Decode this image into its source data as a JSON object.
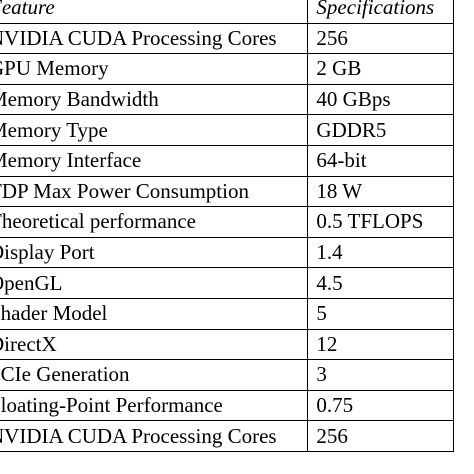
{
  "table": {
    "headers": [
      "Feature",
      "Specifications"
    ],
    "rows": [
      [
        "NVIDIA CUDA Processing Cores",
        "256"
      ],
      [
        "GPU Memory",
        "2 GB"
      ],
      [
        "Memory Bandwidth",
        "40 GBps"
      ],
      [
        "Memory Type",
        "GDDR5"
      ],
      [
        "Memory Interface",
        "64-bit"
      ],
      [
        "TDP Max Power Consumption",
        "18 W"
      ],
      [
        "Theoretical performance",
        "0.5 TFLOPS"
      ],
      [
        "Display Port",
        "1.4"
      ],
      [
        "OpenGL",
        "4.5"
      ],
      [
        "Shader Model",
        "5"
      ],
      [
        "DirectX",
        "12"
      ],
      [
        "PCIe Generation",
        "3"
      ],
      [
        "Floating-Point Performance",
        "0.75"
      ],
      [
        "NVIDIA CUDA Processing Cores",
        "256"
      ]
    ]
  }
}
